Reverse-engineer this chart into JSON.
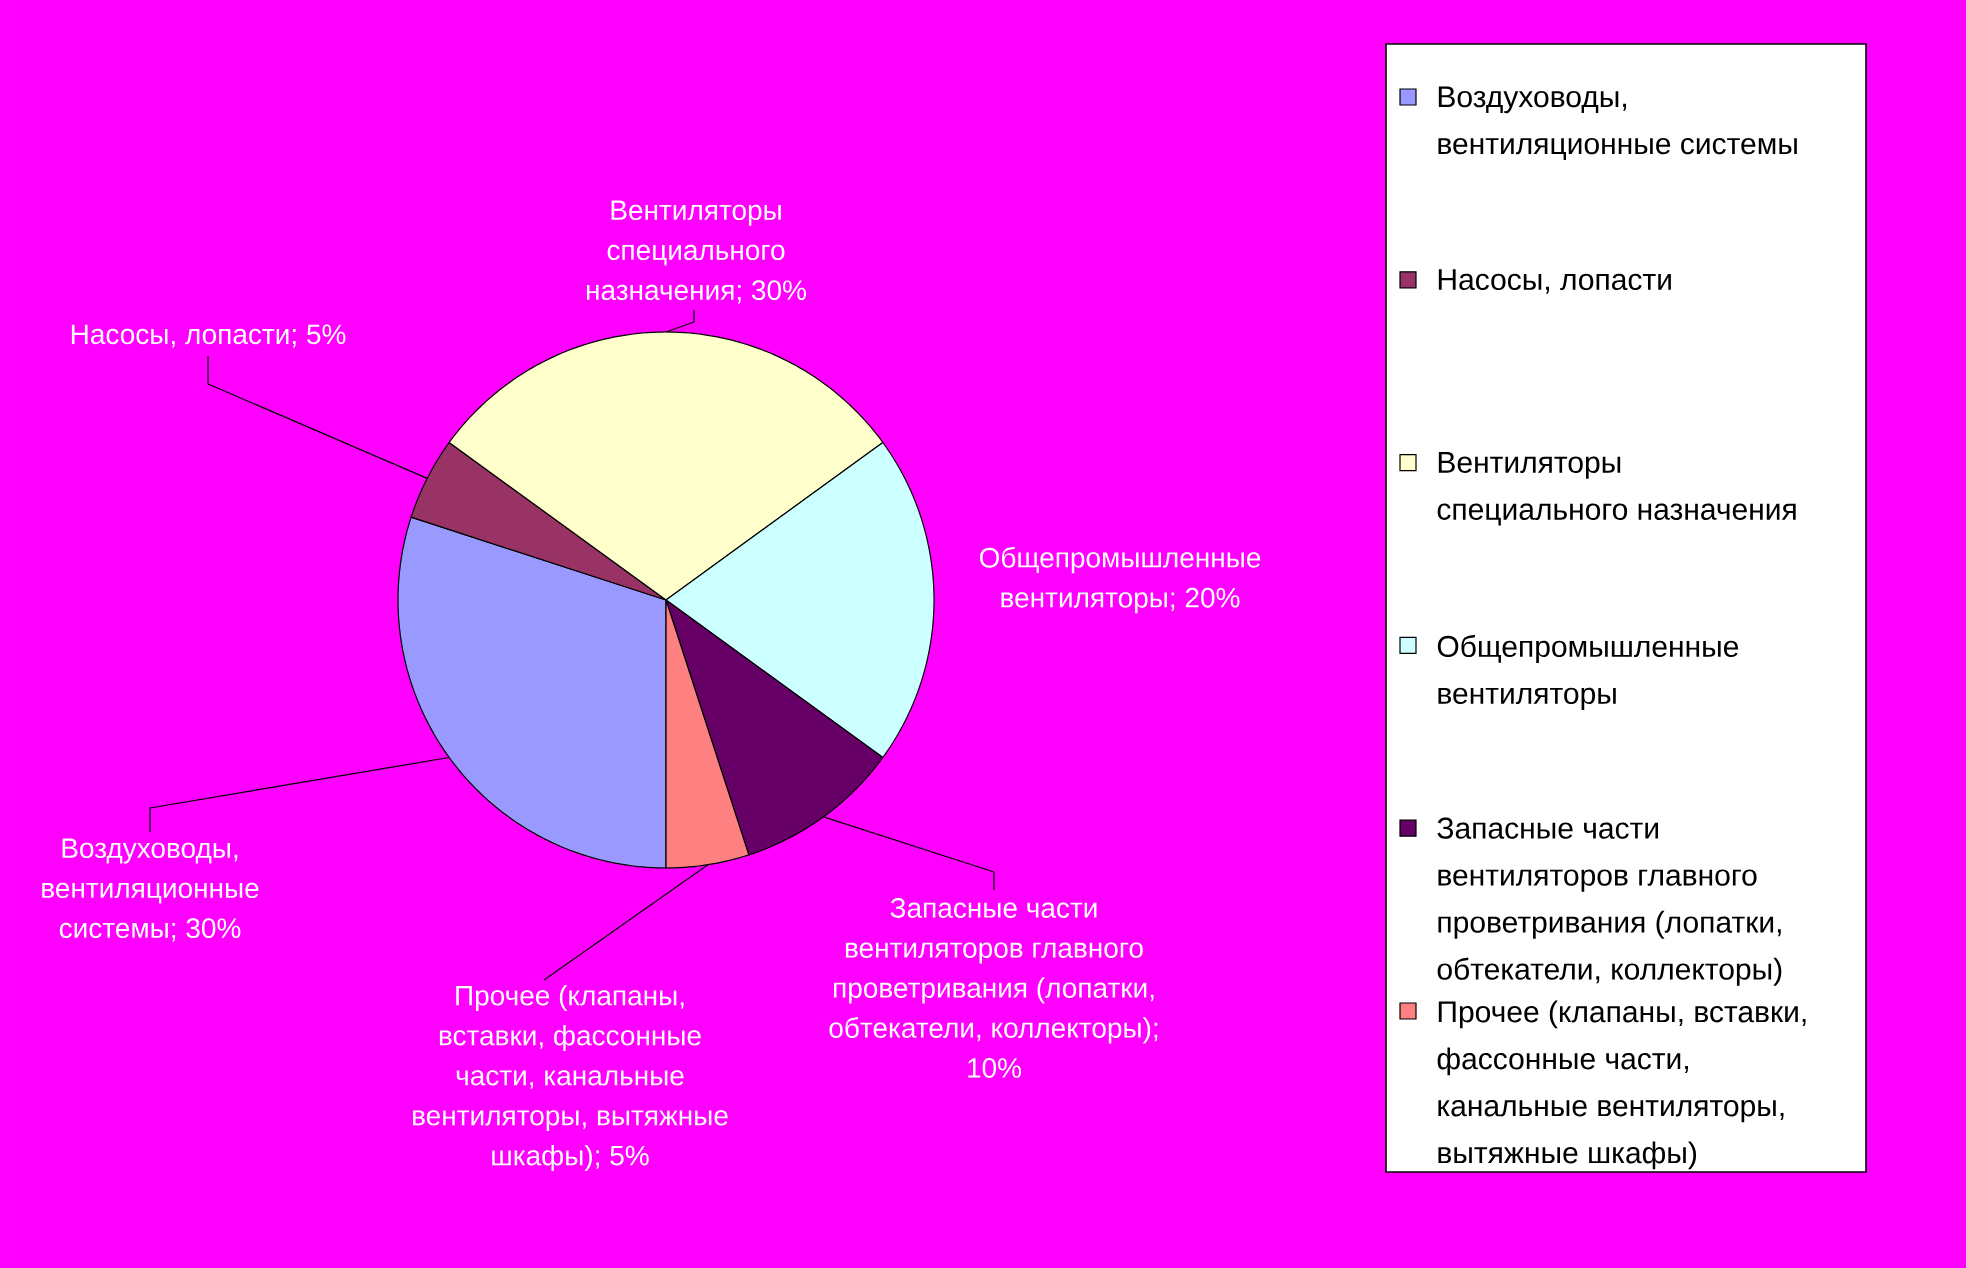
{
  "chart_data": {
    "type": "pie",
    "categories": [
      "Воздуховоды, вентиляционные системы",
      "Насосы, лопасти",
      "Вентиляторы специального назначения",
      "Общепромышленные вентиляторы",
      "Запасные части вентиляторов главного проветривания (лопатки, обтекатели, коллекторы)",
      "Прочее (клапаны, вставки, фассонные части, канальные вентиляторы, вытяжные шкафы)"
    ],
    "values": [
      30,
      5,
      30,
      20,
      10,
      5
    ],
    "colors": [
      "#9999ff",
      "#993366",
      "#ffffcc",
      "#ccffff",
      "#660066",
      "#ff8080"
    ],
    "value_labels": [
      "Воздуховоды, вентиляционные системы; 30%",
      "Насосы, лопасти; 5%",
      "Вентиляторы специального назначения; 30%",
      "Общепромышленные вентиляторы; 20%",
      "Запасные части вентиляторов главного проветривания (лопатки, обтекатели, коллекторы); 10%",
      "Прочее (клапаны, вставки, фассонные части, канальные вентиляторы, вытяжные шкафы); 5%"
    ],
    "legend": "right"
  }
}
